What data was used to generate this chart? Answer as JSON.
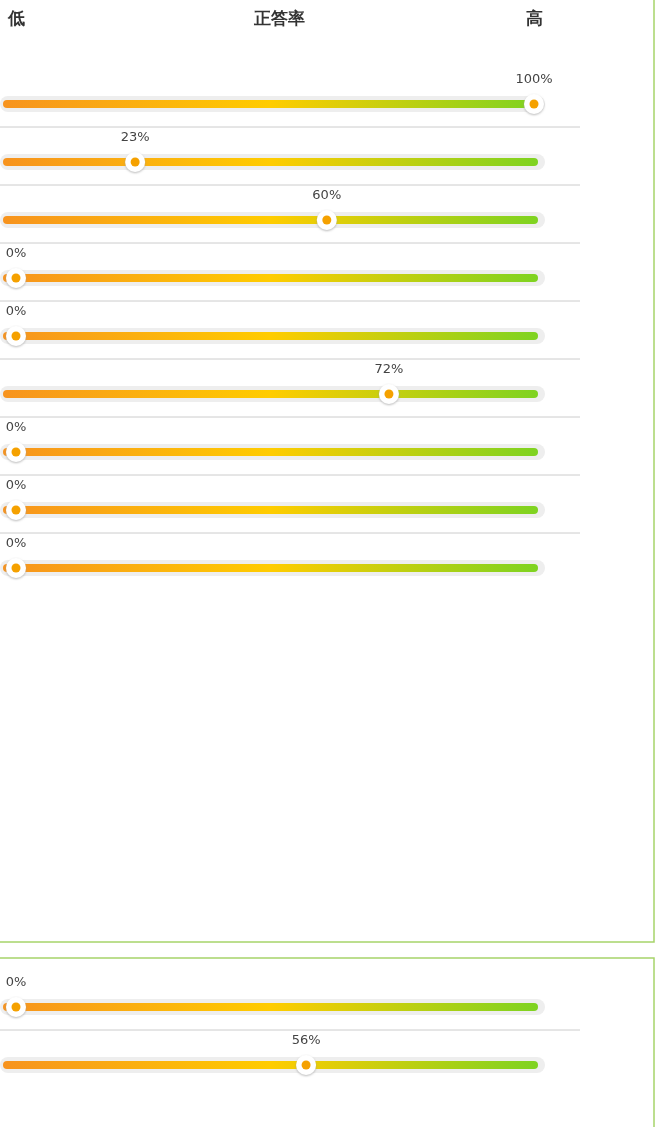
{
  "chart_data": [
    {
      "type": "other",
      "data_labels": true,
      "xlabel": "正答率",
      "annotations": [
        "低",
        "高"
      ],
      "color": "#f5a100",
      "categories": [
        null,
        null,
        null,
        null,
        null,
        null,
        null,
        null,
        null
      ],
      "values": [
        100,
        23,
        60,
        0,
        0,
        72,
        0,
        0,
        0
      ],
      "value_labels": [
        "100%",
        "23%",
        "60%",
        "0%",
        "0%",
        "72%",
        "0%",
        "0%",
        "0%"
      ]
    },
    {
      "type": "other",
      "data_labels": true,
      "color": "#f5a100",
      "categories": [
        null,
        null
      ],
      "values": [
        0,
        56
      ],
      "value_labels": [
        "0%",
        "56%"
      ]
    }
  ]
}
